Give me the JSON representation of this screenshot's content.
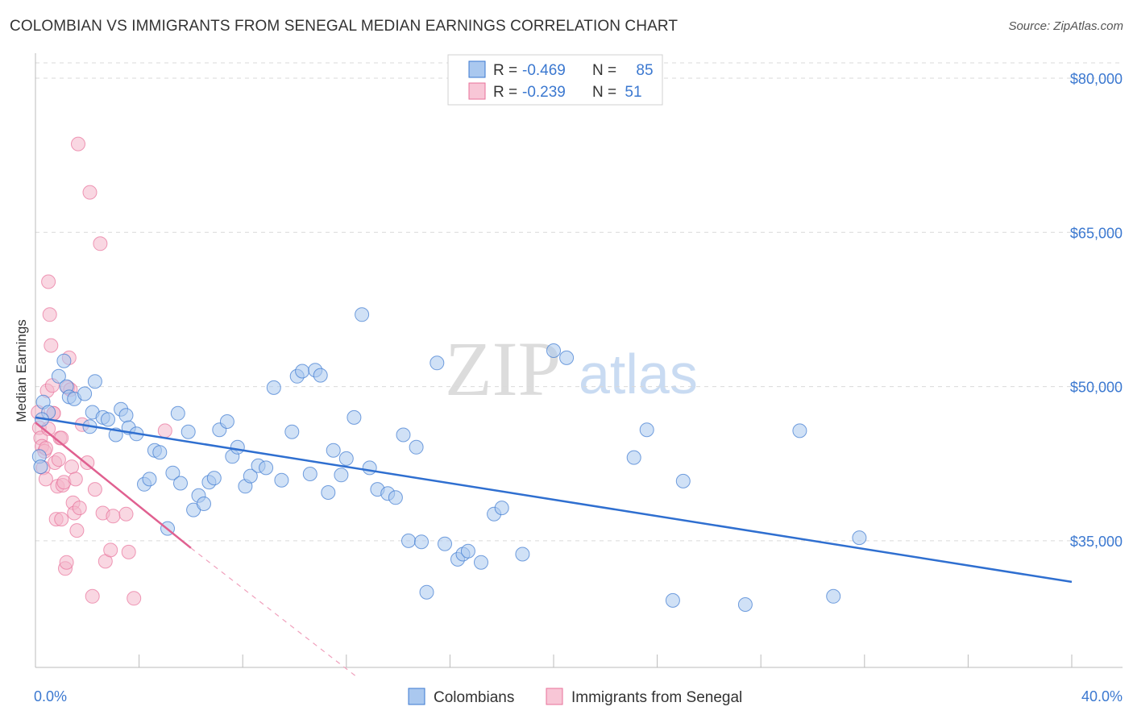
{
  "title": "COLOMBIAN VS IMMIGRANTS FROM SENEGAL MEDIAN EARNINGS CORRELATION CHART",
  "source": "Source: ZipAtlas.com",
  "watermark": {
    "zip": "ZIP",
    "atlas": "atlas"
  },
  "colors": {
    "blue": "#3b78d0",
    "blue_fill": "#aac8ef",
    "pink": "#e8709a",
    "pink_fill": "#f4b6cb"
  },
  "legend": [
    {
      "r_label": "R =",
      "r_value": "-0.469",
      "n_label": "N =",
      "n_value": "85"
    },
    {
      "r_label": "R =",
      "r_value": "-0.239",
      "n_label": "N =",
      "n_value": "51"
    }
  ],
  "chart_data": {
    "type": "scatter",
    "title": "COLOMBIAN VS IMMIGRANTS FROM SENEGAL MEDIAN EARNINGS CORRELATION CHART",
    "xlabel": "",
    "ylabel": "Median Earnings",
    "xlim": [
      0,
      40
    ],
    "ylim": [
      20000,
      82000
    ],
    "x_tick_labels": [
      "0.0%",
      "40.0%"
    ],
    "y_ticks": [
      35000,
      50000,
      65000,
      80000
    ],
    "y_tick_labels": [
      "$35,000",
      "$50,000",
      "$65,000",
      "$80,000"
    ],
    "series": [
      {
        "name": "Colombians",
        "trend": {
          "x0": 0,
          "y0": 47000,
          "x1": 40,
          "y1": 31000
        },
        "points": [
          [
            0.3,
            48500
          ],
          [
            0.5,
            47500
          ],
          [
            0.9,
            51000
          ],
          [
            1.1,
            52500
          ],
          [
            1.2,
            50000
          ],
          [
            1.3,
            49000
          ],
          [
            1.5,
            48800
          ],
          [
            1.9,
            49300
          ],
          [
            2.1,
            46100
          ],
          [
            2.2,
            47500
          ],
          [
            2.3,
            50500
          ],
          [
            2.6,
            47000
          ],
          [
            2.8,
            46800
          ],
          [
            3.1,
            45300
          ],
          [
            3.3,
            47800
          ],
          [
            3.5,
            47200
          ],
          [
            3.6,
            46000
          ],
          [
            3.9,
            45400
          ],
          [
            4.2,
            40500
          ],
          [
            4.4,
            41000
          ],
          [
            4.6,
            43800
          ],
          [
            4.8,
            43600
          ],
          [
            5.1,
            36200
          ],
          [
            5.3,
            41600
          ],
          [
            5.5,
            47400
          ],
          [
            5.6,
            40600
          ],
          [
            5.9,
            45600
          ],
          [
            6.1,
            38000
          ],
          [
            6.3,
            39400
          ],
          [
            6.5,
            38600
          ],
          [
            6.7,
            40700
          ],
          [
            6.9,
            41100
          ],
          [
            7.1,
            45800
          ],
          [
            7.4,
            46600
          ],
          [
            7.6,
            43200
          ],
          [
            7.8,
            44100
          ],
          [
            8.1,
            40300
          ],
          [
            8.3,
            41300
          ],
          [
            8.6,
            42300
          ],
          [
            8.9,
            42100
          ],
          [
            9.2,
            49900
          ],
          [
            9.5,
            40900
          ],
          [
            9.9,
            45600
          ],
          [
            10.1,
            51000
          ],
          [
            10.3,
            51500
          ],
          [
            10.6,
            41500
          ],
          [
            10.8,
            51600
          ],
          [
            11.0,
            51100
          ],
          [
            11.3,
            39700
          ],
          [
            11.5,
            43800
          ],
          [
            11.8,
            41400
          ],
          [
            12.0,
            43000
          ],
          [
            12.3,
            47000
          ],
          [
            12.6,
            57000
          ],
          [
            12.9,
            42100
          ],
          [
            13.2,
            40000
          ],
          [
            13.6,
            39600
          ],
          [
            13.9,
            39200
          ],
          [
            14.2,
            45300
          ],
          [
            14.4,
            35000
          ],
          [
            14.7,
            44100
          ],
          [
            14.9,
            34900
          ],
          [
            15.1,
            30000
          ],
          [
            15.5,
            52300
          ],
          [
            15.8,
            34700
          ],
          [
            16.3,
            33200
          ],
          [
            16.5,
            33700
          ],
          [
            16.7,
            34000
          ],
          [
            17.2,
            32900
          ],
          [
            17.7,
            37600
          ],
          [
            18.0,
            38200
          ],
          [
            18.8,
            33700
          ],
          [
            20.0,
            53500
          ],
          [
            20.5,
            52800
          ],
          [
            23.1,
            43100
          ],
          [
            23.6,
            45800
          ],
          [
            24.6,
            29200
          ],
          [
            25.0,
            40800
          ],
          [
            27.4,
            28800
          ],
          [
            29.5,
            45700
          ],
          [
            30.8,
            29600
          ],
          [
            31.8,
            35300
          ],
          [
            0.15,
            43200
          ],
          [
            0.2,
            42200
          ],
          [
            0.25,
            46800
          ]
        ]
      },
      {
        "name": "Immigrants from Senegal",
        "trend": {
          "x0": 0,
          "y0": 46500,
          "x1": 6,
          "y1": 34300
        },
        "trend_dashed": {
          "x0": 6,
          "y0": 34300,
          "x1": 13.3,
          "y1": 20000
        },
        "points": [
          [
            0.1,
            47500
          ],
          [
            0.15,
            46000
          ],
          [
            0.2,
            45000
          ],
          [
            0.25,
            44200
          ],
          [
            0.3,
            42100
          ],
          [
            0.35,
            43700
          ],
          [
            0.4,
            41000
          ],
          [
            0.45,
            49600
          ],
          [
            0.5,
            60200
          ],
          [
            0.55,
            57000
          ],
          [
            0.6,
            54000
          ],
          [
            0.65,
            50100
          ],
          [
            0.7,
            47400
          ],
          [
            0.75,
            42600
          ],
          [
            0.8,
            37100
          ],
          [
            0.85,
            40300
          ],
          [
            0.9,
            42900
          ],
          [
            0.95,
            45000
          ],
          [
            1.0,
            45000
          ],
          [
            1.05,
            40400
          ],
          [
            1.1,
            40700
          ],
          [
            1.15,
            32300
          ],
          [
            1.2,
            32900
          ],
          [
            1.25,
            49900
          ],
          [
            1.3,
            52800
          ],
          [
            1.35,
            49700
          ],
          [
            1.4,
            42200
          ],
          [
            1.45,
            38700
          ],
          [
            1.5,
            37700
          ],
          [
            1.55,
            41000
          ],
          [
            1.6,
            36000
          ],
          [
            1.65,
            73600
          ],
          [
            1.7,
            38200
          ],
          [
            1.8,
            46300
          ],
          [
            2.0,
            42600
          ],
          [
            2.1,
            68900
          ],
          [
            2.2,
            29600
          ],
          [
            2.3,
            40000
          ],
          [
            2.5,
            63900
          ],
          [
            2.6,
            37700
          ],
          [
            2.7,
            33000
          ],
          [
            2.9,
            34100
          ],
          [
            3.0,
            37400
          ],
          [
            3.5,
            37600
          ],
          [
            3.6,
            33900
          ],
          [
            3.8,
            29400
          ],
          [
            5.0,
            45700
          ],
          [
            0.7,
            47400
          ],
          [
            0.5,
            45900
          ],
          [
            1.0,
            37100
          ],
          [
            0.4,
            44000
          ]
        ]
      }
    ]
  },
  "bottom_legend": [
    "Colombians",
    "Immigrants from Senegal"
  ]
}
